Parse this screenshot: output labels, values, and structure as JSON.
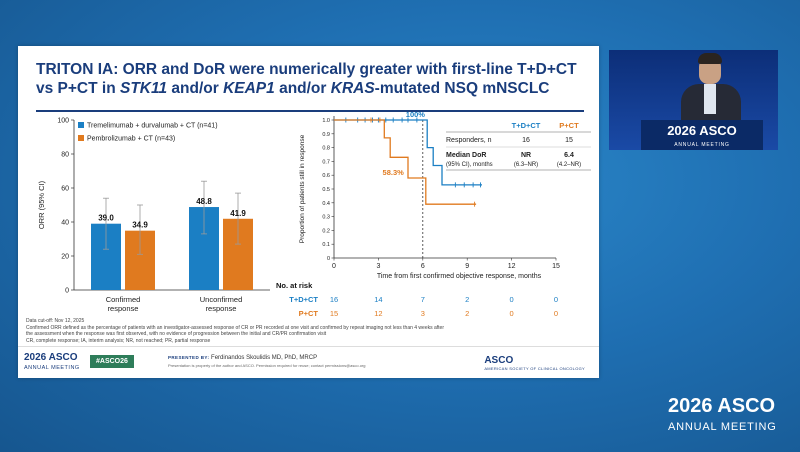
{
  "slide": {
    "title_part1": "TRITON IA: ORR and DoR were numerically greater with first-line T+D+CT vs P+CT in ",
    "title_gene1": "STK11",
    "title_part2": " and/or ",
    "title_gene2": "KEAP1",
    "title_part3": " and/or ",
    "title_gene3": "KRAS",
    "title_part4": "-mutated NSQ mNSCLC"
  },
  "chart_data": [
    {
      "type": "bar",
      "ylabel": "ORR (95% CI)",
      "ylim": [
        0,
        100
      ],
      "yticks": [
        "0",
        "20",
        "40",
        "60",
        "80",
        "100"
      ],
      "categories": [
        "Confirmed response",
        "Unconfirmed response"
      ],
      "category_lines": [
        [
          "Confirmed",
          "response"
        ],
        [
          "Unconfirmed",
          "response"
        ]
      ],
      "series": [
        {
          "name": "Tremelimumab + durvalumab + CT (n=41)",
          "color": "#1b7fc4",
          "values": [
            39.0,
            48.8
          ],
          "labels": [
            "39.0",
            "48.8"
          ],
          "ci": [
            [
              24,
              54
            ],
            [
              33,
              64
            ]
          ]
        },
        {
          "name": "Pembrolizumab + CT (n=43)",
          "color": "#e07a1f",
          "values": [
            34.9,
            41.9
          ],
          "labels": [
            "34.9",
            "41.9"
          ],
          "ci": [
            [
              21,
              50
            ],
            [
              27,
              57
            ]
          ]
        }
      ]
    },
    {
      "type": "line",
      "xlabel": "Time from first confirmed objective response, months",
      "ylabel": "Proportion of patients still in response",
      "xlim": [
        0,
        15
      ],
      "ylim": [
        0,
        1.0
      ],
      "xticks": [
        "0",
        "3",
        "6",
        "9",
        "12",
        "15"
      ],
      "yticks": [
        "0",
        "0.1",
        "0.2",
        "0.3",
        "0.4",
        "0.5",
        "0.6",
        "0.7",
        "0.8",
        "0.9",
        "1.0"
      ],
      "reference_x": 6,
      "annotations": [
        {
          "text": "100%",
          "x": 5.5,
          "y": 1.0,
          "color": "#1b7fc4"
        },
        {
          "text": "58.3%",
          "x": 4.0,
          "y": 0.58,
          "color": "#e07a1f"
        }
      ],
      "series": [
        {
          "name": "T+D+CT",
          "color": "#1b7fc4",
          "steps": [
            [
              0,
              1.0
            ],
            [
              6.3,
              1.0
            ],
            [
              6.3,
              0.8
            ],
            [
              6.7,
              0.8
            ],
            [
              6.7,
              0.67
            ],
            [
              7.3,
              0.67
            ],
            [
              7.3,
              0.53
            ],
            [
              10,
              0.53
            ]
          ],
          "censor": [
            [
              0.8,
              1.0
            ],
            [
              1.6,
              1.0
            ],
            [
              2.1,
              1.0
            ],
            [
              2.6,
              1.0
            ],
            [
              3.0,
              1.0
            ],
            [
              3.5,
              1.0
            ],
            [
              4.0,
              1.0
            ],
            [
              4.6,
              1.0
            ],
            [
              5.0,
              1.0
            ],
            [
              5.6,
              1.0
            ],
            [
              8.2,
              0.53
            ],
            [
              8.8,
              0.53
            ],
            [
              9.4,
              0.53
            ],
            [
              9.9,
              0.53
            ]
          ]
        },
        {
          "name": "P+CT",
          "color": "#e07a1f",
          "steps": [
            [
              0,
              1.0
            ],
            [
              3.4,
              1.0
            ],
            [
              3.4,
              0.87
            ],
            [
              3.8,
              0.87
            ],
            [
              3.8,
              0.73
            ],
            [
              5.0,
              0.73
            ],
            [
              5.0,
              0.58
            ],
            [
              6.2,
              0.58
            ],
            [
              6.2,
              0.39
            ],
            [
              9.6,
              0.39
            ]
          ],
          "censor": [
            [
              2.5,
              1.0
            ],
            [
              3.1,
              1.0
            ],
            [
              9.5,
              0.39
            ]
          ]
        }
      ]
    }
  ],
  "summary_table": {
    "col_headers": [
      "T+D+CT",
      "P+CT"
    ],
    "responders_label": "Responders, n",
    "responders_values": [
      "16",
      "15"
    ],
    "dor_label": "Median DoR",
    "dor_sublabel": "(95% CI), months",
    "dor_values": [
      "NR",
      "6.4"
    ],
    "dor_ci": [
      "(6.3–NR)",
      "(4.2–NR)"
    ]
  },
  "at_risk": {
    "title": "No. at risk",
    "rows": [
      {
        "label": "T+D+CT",
        "color": "#1b7fc4",
        "values": [
          "16",
          "14",
          "7",
          "2",
          "0",
          "0"
        ]
      },
      {
        "label": "P+CT",
        "color": "#e07a1f",
        "values": [
          "15",
          "12",
          "3",
          "2",
          "0",
          "0"
        ]
      }
    ]
  },
  "footnote": {
    "line1": "Data cut-off: Nov 12, 2025",
    "line2": "Confirmed ORR defined as the percentage of patients with an investigator-assessed response of CR or PR recorded at one visit and confirmed by repeat imaging not less than 4 weeks after the assessment when the response was first observed, with no evidence of progression between the initial and CR/PR confirmation visit",
    "line3": "CR, complete response; IA, interim analysis; NR, not reached; PR, partial response"
  },
  "footer": {
    "asco_year": "2026 ASCO",
    "asco_sub": "ANNUAL MEETING",
    "hashtag": "#ASCO26",
    "presented_by": "PRESENTED BY:",
    "presenter": "Ferdinandos Skoulidis MD, PhD, MRCP",
    "presenter_note": "Presentation is property of the author and ASCO. Permission required for reuse; contact permissions@asco.org",
    "asco_logo": "ASCO",
    "asco_logo_sub": "AMERICAN SOCIETY OF CLINICAL ONCOLOGY"
  },
  "stage": {
    "podium_year": "2026 ASCO",
    "podium_sub": "ANNUAL MEETING",
    "corner_year": "2026 ASCO",
    "corner_sub": "ANNUAL MEETING"
  }
}
